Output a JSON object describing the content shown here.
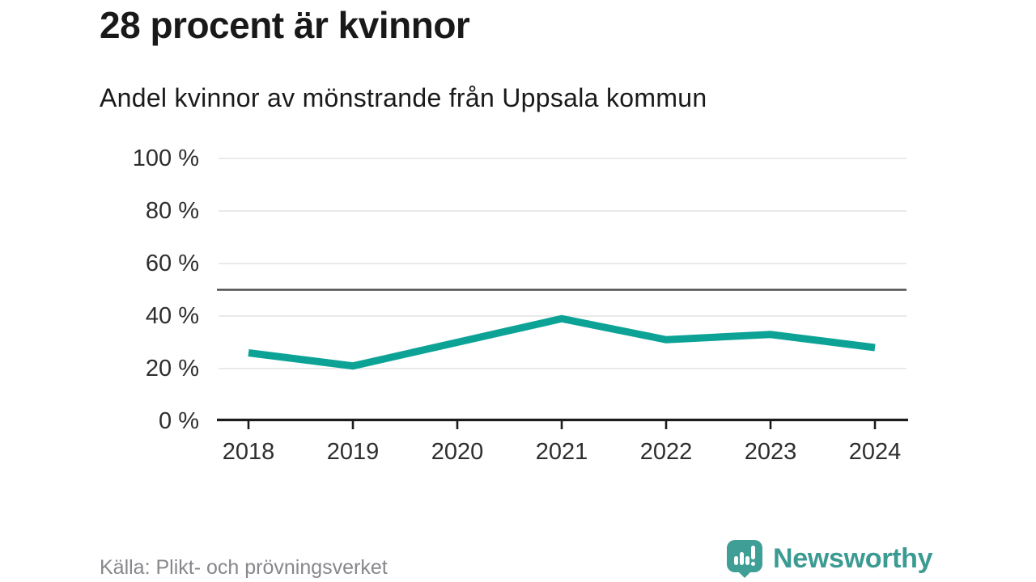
{
  "header": {
    "title": "28 procent är kvinnor",
    "subtitle": "Andel kvinnor av mönstrande från Uppsala kommun"
  },
  "footer": {
    "source": "Källa: Plikt- och prövningsverket",
    "brand_name": "Newsworthy",
    "brand_icon": "newsworthy-speech-bubble-barchart-icon"
  },
  "colors": {
    "line": "#0ca396",
    "reference_line": "#4f4f4f",
    "gridline": "#e3e3e3",
    "axis": "#1c1c1c",
    "tick_text": "#2e2e2e",
    "muted_text": "#87878c",
    "brand_teal": "#3b9b93"
  },
  "chart_data": {
    "type": "line",
    "title": "28 procent är kvinnor",
    "subtitle": "Andel kvinnor av mönstrande från Uppsala kommun",
    "x": [
      2018,
      2019,
      2020,
      2021,
      2022,
      2023,
      2024
    ],
    "series": [
      {
        "name": "Andel kvinnor av mönstrande (%)",
        "values": [
          26,
          21,
          30,
          39,
          31,
          33,
          28
        ]
      }
    ],
    "xlabel": "",
    "ylabel": "",
    "ylim": [
      0,
      100
    ],
    "ytick_step": 20,
    "ytick_suffix": " %",
    "reference_line_y": 50,
    "grid": true,
    "legend": "none"
  }
}
